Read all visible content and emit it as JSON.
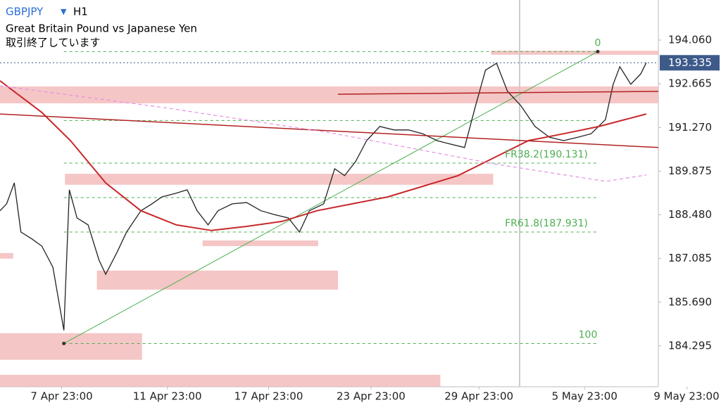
{
  "chart_data": {
    "type": "line",
    "symbol": "GBPJPY",
    "timeframe": "H1",
    "title": "Great Britain Pound vs Japanese Yen",
    "status": "取引終了しています",
    "xlim": [
      0,
      598
    ],
    "ylim": [
      182.99,
      195.34
    ],
    "xticks": [
      {
        "value": 56,
        "label": "7 Apr 23:00"
      },
      {
        "value": 152,
        "label": "11 Apr 23:00"
      },
      {
        "value": 244,
        "label": "17 Apr 23:00"
      },
      {
        "value": 337,
        "label": "23 Apr 23:00"
      },
      {
        "value": 435,
        "label": "29 Apr 23:00"
      },
      {
        "value": 531,
        "label": "5 May 23:00"
      },
      {
        "value": 624,
        "label": "9 May 23:00"
      }
    ],
    "yticks": [
      {
        "value": 194.06,
        "label": "194.060"
      },
      192.665,
      {
        "value": 191.27,
        "label": "191.270"
      },
      189.875,
      {
        "value": 188.48,
        "label": "188.480"
      },
      187.085,
      {
        "value": 185.69,
        "label": "185.690"
      },
      184.295
    ],
    "current_price": 193.335,
    "current_color": "#3d5a8a",
    "separator_x": 472,
    "zones": [
      {
        "x0": 0,
        "x1": 598,
        "y0": 192.04,
        "y1": 192.58
      },
      {
        "x0": 59,
        "x1": 448,
        "y0": 189.44,
        "y1": 189.79
      },
      {
        "x0": 184,
        "x1": 289,
        "y0": 187.48,
        "y1": 187.66
      },
      {
        "x0": 88,
        "x1": 307,
        "y0": 186.09,
        "y1": 186.7
      },
      {
        "x0": 0,
        "x1": 129,
        "y0": 183.85,
        "y1": 184.7
      },
      {
        "x0": 0,
        "x1": 12,
        "y0": 187.08,
        "y1": 187.26
      },
      {
        "x0": 0,
        "x1": 400,
        "y0": 182.99,
        "y1": 183.37
      },
      {
        "x0": 446,
        "x1": 598,
        "y0": 193.59,
        "y1": 193.72
      }
    ],
    "zone_color": "#f2b8b8",
    "fib": {
      "x": [
        58,
        543
      ],
      "color": "#4caf50",
      "levels": [
        {
          "ratio": 0,
          "value": 193.692
        },
        {
          "ratio": 23.6,
          "value": 191.492
        },
        {
          "ratio": 38.2,
          "value": 190.131,
          "label": "FR38.2(190.131)"
        },
        {
          "ratio": 50,
          "value": 189.031
        },
        {
          "ratio": 61.8,
          "value": 187.931,
          "label": "FR61.8(187.931)"
        },
        {
          "ratio": 100,
          "value": 184.37
        }
      ]
    },
    "series": [
      {
        "color": "#222222",
        "width": 1.3,
        "x": [
          0,
          6,
          13,
          19,
          29,
          38,
          48,
          58,
          63,
          70,
          80,
          90,
          96,
          106,
          115,
          128,
          138,
          147,
          160,
          170,
          179,
          189,
          198,
          211,
          224,
          237,
          249,
          262,
          272,
          281,
          294,
          304,
          313,
          323,
          333,
          345,
          358,
          371,
          384,
          397,
          409,
          422,
          432,
          441,
          451,
          461,
          473,
          486,
          499,
          512,
          525,
          537,
          550,
          557,
          563,
          573,
          582,
          587
        ],
        "values": [
          188.61,
          188.83,
          189.5,
          187.93,
          187.71,
          187.48,
          186.81,
          184.79,
          189.28,
          188.38,
          188.16,
          187.03,
          186.58,
          187.26,
          187.93,
          188.61,
          188.83,
          189.05,
          189.17,
          189.28,
          188.61,
          188.16,
          188.61,
          188.83,
          188.87,
          188.61,
          188.49,
          188.38,
          187.93,
          188.61,
          188.83,
          189.95,
          189.73,
          190.18,
          190.85,
          191.3,
          191.19,
          191.19,
          191.07,
          190.85,
          190.74,
          190.63,
          191.97,
          193.1,
          193.32,
          192.42,
          191.97,
          191.3,
          190.96,
          190.85,
          190.96,
          191.07,
          191.52,
          192.65,
          193.21,
          192.65,
          192.98,
          193.335
        ]
      },
      {
        "color": "#c8282a",
        "width": 2,
        "x": [
          0,
          38,
          64,
          96,
          128,
          160,
          192,
          224,
          256,
          288,
          320,
          352,
          384,
          416,
          448,
          480,
          512,
          544,
          587
        ],
        "values": [
          192.76,
          191.75,
          190.85,
          189.5,
          188.61,
          188.16,
          187.98,
          188.11,
          188.27,
          188.61,
          188.83,
          189.05,
          189.39,
          189.73,
          190.29,
          190.85,
          191.07,
          191.3,
          191.7
        ]
      },
      {
        "color": "#b22222",
        "width": 1.5,
        "x": [
          0,
          598
        ],
        "values": [
          191.7,
          190.63
        ]
      },
      {
        "color": "#b22222",
        "width": 1.5,
        "x": [
          307,
          598
        ],
        "values": [
          192.33,
          192.42
        ]
      },
      {
        "color": "#e58fe5",
        "width": 1.2,
        "dash": "5,4",
        "x": [
          0,
          150,
          300,
          450,
          550,
          587
        ],
        "values": [
          192.6,
          191.9,
          191.1,
          190.1,
          189.55,
          189.75
        ]
      }
    ]
  }
}
